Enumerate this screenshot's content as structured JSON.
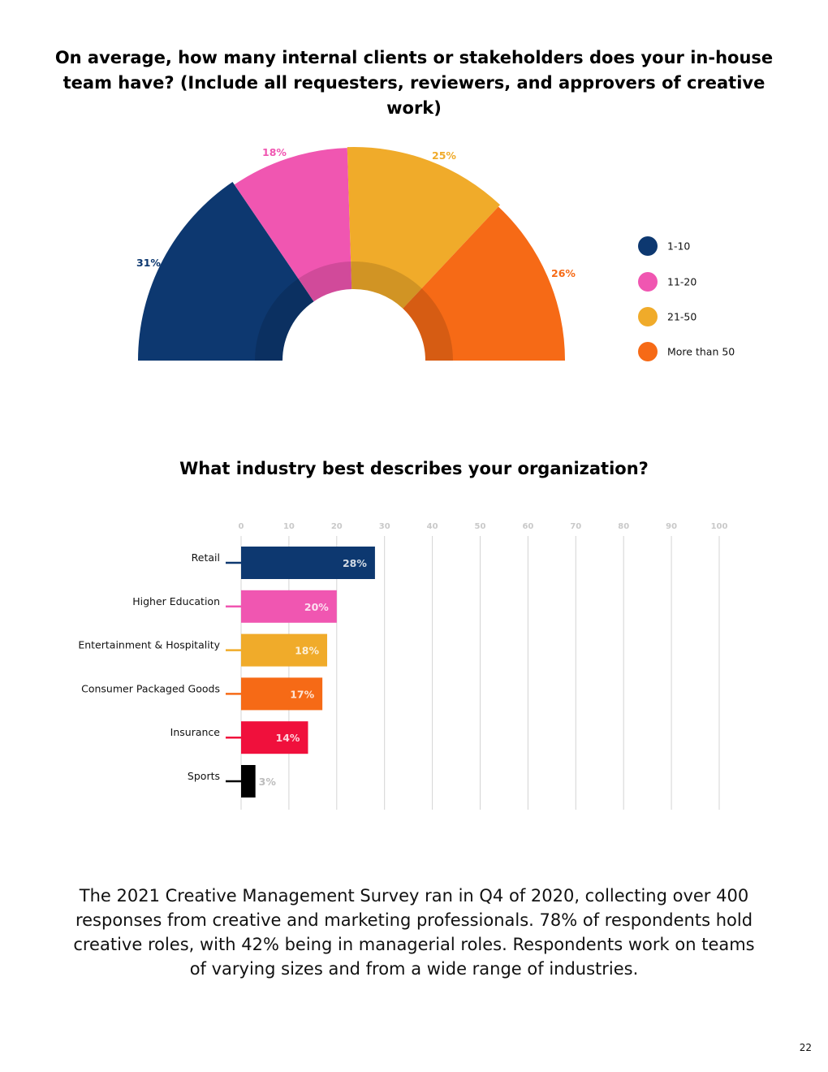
{
  "chart_data": [
    {
      "type": "pie",
      "variant": "half-donut",
      "title": "On average, how many internal clients or stakeholders does your in-house team have? (Include all requesters, reviewers, and approvers of creative work)",
      "categories": [
        "1-10",
        "11-20",
        "21-50",
        "More than 50"
      ],
      "values": [
        31,
        18,
        25,
        26
      ],
      "value_labels": [
        "31%",
        "18%",
        "25%",
        "26%"
      ],
      "colors": [
        "#0d3870",
        "#f056b1",
        "#f0ab2a",
        "#f66a16"
      ],
      "legend_position": "right"
    },
    {
      "type": "bar",
      "orientation": "horizontal",
      "title": "What industry best describes your organization?",
      "categories": [
        "Retail",
        "Higher Education",
        "Entertainment & Hospitality",
        "Consumer Packaged Goods",
        "Insurance",
        "Sports"
      ],
      "values": [
        28,
        20,
        18,
        17,
        14,
        3
      ],
      "value_labels": [
        "28%",
        "20%",
        "18%",
        "17%",
        "14%",
        "3%"
      ],
      "colors": [
        "#0d3870",
        "#f056b1",
        "#f0ab2a",
        "#f66a16",
        "#f0103c",
        "#000000"
      ],
      "xlim": [
        0,
        100
      ],
      "ticks": [
        0,
        10,
        20,
        30,
        40,
        50,
        60,
        70,
        80,
        90,
        100
      ],
      "tick_labels": [
        "0",
        "10",
        "20",
        "30",
        "40",
        "50",
        "60",
        "70",
        "80",
        "90",
        "100"
      ],
      "grid": true,
      "xlabel": "",
      "ylabel": ""
    }
  ],
  "summary": "The 2021 Creative Management Survey ran in Q4 of 2020, collecting over 400 responses from creative and marketing professionals. 78% of respondents hold creative roles, with 42% being in managerial roles. Respondents work on teams of varying sizes and from a wide range of industries.",
  "page_number": "22"
}
